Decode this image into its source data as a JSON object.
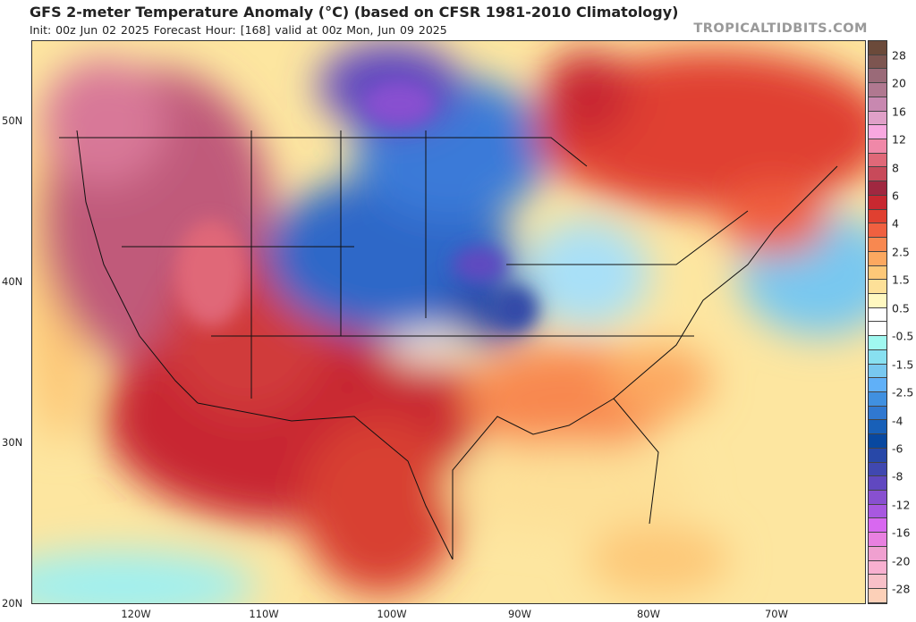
{
  "header": {
    "title": "GFS 2-meter Temperature Anomaly (°C) (based on CFSR 1981-2010 Climatology)",
    "subtitle": "Init: 00z Jun 02 2025   Forecast Hour: [168]   valid at 00z Mon, Jun 09 2025",
    "brand": "TROPICALTIDBITS.COM"
  },
  "axes": {
    "lat_labels": [
      "50N",
      "40N",
      "30N",
      "20N"
    ],
    "lon_labels": [
      "120W",
      "110W",
      "100W",
      "90W",
      "80W",
      "70W"
    ]
  },
  "colorbar": {
    "labels": [
      "28",
      "20",
      "16",
      "12",
      "8",
      "6",
      "4",
      "2.5",
      "1.5",
      "0.5",
      "-0.5",
      "-1.5",
      "-2.5",
      "-4",
      "-6",
      "-8",
      "-12",
      "-16",
      "-20",
      "-28"
    ],
    "colors": [
      "#6b4a3a",
      "#7d5550",
      "#9a6a78",
      "#b07890",
      "#c888b0",
      "#e0a0c8",
      "#f8a8e0",
      "#f088a8",
      "#e06878",
      "#c84a5a",
      "#a02840",
      "#c82830",
      "#e04030",
      "#f06040",
      "#f88850",
      "#fca860",
      "#fdc878",
      "#fde098",
      "#fff8c0",
      "#ffffff",
      "#ffffff",
      "#a0f8f0",
      "#88e0f0",
      "#78c8f0",
      "#60b0f8",
      "#4090e0",
      "#3078d0",
      "#1860b8",
      "#0848a0",
      "#2848a8",
      "#4048b0",
      "#6048c0",
      "#8850d0",
      "#a858e0",
      "#d868f0",
      "#e880e0",
      "#f0a0d0",
      "#f8b0d0",
      "#f8c0c8",
      "#fcd0b8"
    ]
  }
}
